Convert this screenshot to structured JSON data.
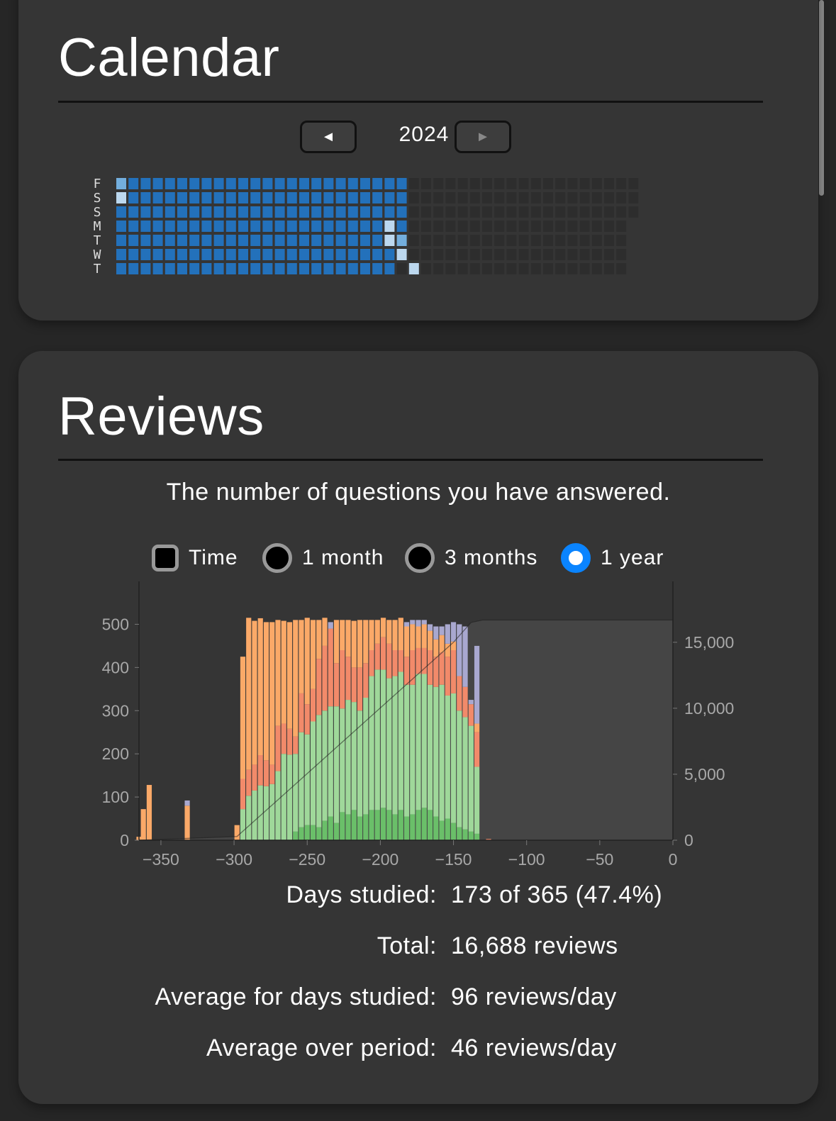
{
  "calendar": {
    "title": "Calendar",
    "year": "2024",
    "prev_label": "◄",
    "next_label": "►",
    "day_labels": [
      "F",
      "S",
      "S",
      "M",
      "T",
      "W",
      "T"
    ],
    "colors": {
      "studied": "#2371bb",
      "light": "#bcd8ef",
      "mid": "#73aedd",
      "empty": "#2d2d2d"
    }
  },
  "reviews": {
    "title": "Reviews",
    "subtitle": "The number of questions you have answered.",
    "options": [
      {
        "label": "Time",
        "type": "checkbox",
        "checked": false
      },
      {
        "label": "1 month",
        "type": "radio",
        "checked": false
      },
      {
        "label": "3 months",
        "type": "radio",
        "checked": false
      },
      {
        "label": "1 year",
        "type": "radio",
        "checked": true
      }
    ],
    "stats": [
      {
        "label": "Days studied:",
        "value": "173 of 365 (47.4%)"
      },
      {
        "label": "Total:",
        "value": "16,688 reviews"
      },
      {
        "label": "Average for days studied:",
        "value": "96 reviews/day"
      },
      {
        "label": "Average over period:",
        "value": "46 reviews/day"
      }
    ]
  },
  "chart_data": {
    "type": "bar",
    "stacked": true,
    "x_ticks": [
      -350,
      -300,
      -250,
      -200,
      -150,
      -100,
      -50,
      0
    ],
    "x_tick_labels": [
      "−350",
      "−300",
      "−250",
      "−200",
      "−150",
      "−100",
      "−50",
      "0"
    ],
    "xlim": [
      -365,
      0
    ],
    "y_ticks": [
      0,
      100,
      200,
      300,
      400,
      500
    ],
    "ylim": [
      0,
      550
    ],
    "y2_ticks": [
      0,
      5000,
      10000,
      15000
    ],
    "y2_tick_labels": [
      "0",
      "5,000",
      "10,000",
      "15,000"
    ],
    "y2lim": [
      0,
      18000
    ],
    "grid": false,
    "colors": {
      "mature": "#6abf69",
      "young": "#9fd89a",
      "relearn": "#f28a6a",
      "learn": "#fba968",
      "filtered": "#a9a8cf",
      "cumulative": "#474747"
    },
    "bars": [
      {
        "day": -365,
        "mature": 0,
        "young": 0,
        "relearn": 0,
        "learn": 8,
        "filtered": 0
      },
      {
        "day": -362,
        "mature": 0,
        "young": 0,
        "relearn": 0,
        "learn": 72,
        "filtered": 0
      },
      {
        "day": -358,
        "mature": 0,
        "young": 0,
        "relearn": 0,
        "learn": 128,
        "filtered": 0
      },
      {
        "day": -332,
        "mature": 0,
        "young": 0,
        "relearn": 0,
        "learn": 80,
        "filtered": 12
      },
      {
        "day": -298,
        "mature": 0,
        "young": 0,
        "relearn": 0,
        "learn": 35,
        "filtered": 0
      },
      {
        "day": -294,
        "mature": 0,
        "young": 72,
        "relearn": 70,
        "learn": 283,
        "filtered": 0
      },
      {
        "day": -290,
        "mature": 0,
        "young": 103,
        "relearn": 60,
        "learn": 352,
        "filtered": 0
      },
      {
        "day": -286,
        "mature": 0,
        "young": 115,
        "relearn": 60,
        "learn": 333,
        "filtered": 0
      },
      {
        "day": -282,
        "mature": 0,
        "young": 127,
        "relearn": 70,
        "learn": 317,
        "filtered": 0
      },
      {
        "day": -278,
        "mature": 0,
        "young": 125,
        "relearn": 60,
        "learn": 320,
        "filtered": 0
      },
      {
        "day": -274,
        "mature": 0,
        "young": 130,
        "relearn": 45,
        "learn": 330,
        "filtered": 0
      },
      {
        "day": -270,
        "mature": 0,
        "young": 160,
        "relearn": 105,
        "learn": 245,
        "filtered": 0
      },
      {
        "day": -266,
        "mature": 0,
        "young": 200,
        "relearn": 70,
        "learn": 238,
        "filtered": 0
      },
      {
        "day": -262,
        "mature": 0,
        "young": 198,
        "relearn": 60,
        "learn": 247,
        "filtered": 0
      },
      {
        "day": -258,
        "mature": 20,
        "young": 180,
        "relearn": 40,
        "learn": 270,
        "filtered": 0
      },
      {
        "day": -254,
        "mature": 30,
        "young": 220,
        "relearn": 90,
        "learn": 170,
        "filtered": 0
      },
      {
        "day": -250,
        "mature": 35,
        "young": 210,
        "relearn": 70,
        "learn": 200,
        "filtered": 0
      },
      {
        "day": -246,
        "mature": 35,
        "young": 240,
        "relearn": 75,
        "learn": 160,
        "filtered": 0
      },
      {
        "day": -242,
        "mature": 30,
        "young": 260,
        "relearn": 130,
        "learn": 90,
        "filtered": 0
      },
      {
        "day": -238,
        "mature": 45,
        "young": 255,
        "relearn": 150,
        "learn": 65,
        "filtered": 0
      },
      {
        "day": -234,
        "mature": 55,
        "young": 255,
        "relearn": 180,
        "learn": 0,
        "filtered": 15
      },
      {
        "day": -230,
        "mature": 40,
        "young": 270,
        "relearn": 100,
        "learn": 100,
        "filtered": 0
      },
      {
        "day": -226,
        "mature": 65,
        "young": 240,
        "relearn": 135,
        "learn": 70,
        "filtered": 0
      },
      {
        "day": -222,
        "mature": 60,
        "young": 265,
        "relearn": 100,
        "learn": 85,
        "filtered": 0
      },
      {
        "day": -218,
        "mature": 70,
        "young": 250,
        "relearn": 80,
        "learn": 108,
        "filtered": 0
      },
      {
        "day": -214,
        "mature": 55,
        "young": 245,
        "relearn": 100,
        "learn": 110,
        "filtered": 0
      },
      {
        "day": -210,
        "mature": 60,
        "young": 270,
        "relearn": 80,
        "learn": 100,
        "filtered": 0
      },
      {
        "day": -206,
        "mature": 70,
        "young": 310,
        "relearn": 60,
        "learn": 70,
        "filtered": 0
      },
      {
        "day": -202,
        "mature": 70,
        "young": 325,
        "relearn": 60,
        "learn": 55,
        "filtered": 0
      },
      {
        "day": -198,
        "mature": 75,
        "young": 320,
        "relearn": 75,
        "learn": 45,
        "filtered": 0
      },
      {
        "day": -194,
        "mature": 70,
        "young": 305,
        "relearn": 80,
        "learn": 55,
        "filtered": 0
      },
      {
        "day": -190,
        "mature": 60,
        "young": 320,
        "relearn": 60,
        "learn": 70,
        "filtered": 0
      },
      {
        "day": -186,
        "mature": 70,
        "young": 320,
        "relearn": 50,
        "learn": 75,
        "filtered": 0
      },
      {
        "day": -182,
        "mature": 55,
        "young": 305,
        "relearn": 65,
        "learn": 70,
        "filtered": 10
      },
      {
        "day": -178,
        "mature": 60,
        "young": 300,
        "relearn": 80,
        "learn": 60,
        "filtered": 10
      },
      {
        "day": -174,
        "mature": 70,
        "young": 315,
        "relearn": 60,
        "learn": 50,
        "filtered": 15
      },
      {
        "day": -170,
        "mature": 75,
        "young": 310,
        "relearn": 60,
        "learn": 55,
        "filtered": 10
      },
      {
        "day": -166,
        "mature": 70,
        "young": 290,
        "relearn": 80,
        "learn": 45,
        "filtered": 15
      },
      {
        "day": -162,
        "mature": 55,
        "young": 300,
        "relearn": 70,
        "learn": 40,
        "filtered": 30
      },
      {
        "day": -158,
        "mature": 45,
        "young": 315,
        "relearn": 75,
        "learn": 40,
        "filtered": 20
      },
      {
        "day": -154,
        "mature": 50,
        "young": 285,
        "relearn": 90,
        "learn": 30,
        "filtered": 45
      },
      {
        "day": -150,
        "mature": 40,
        "young": 300,
        "relearn": 100,
        "learn": 20,
        "filtered": 45
      },
      {
        "day": -146,
        "mature": 30,
        "young": 270,
        "relearn": 80,
        "learn": 0,
        "filtered": 120
      },
      {
        "day": -142,
        "mature": 25,
        "young": 260,
        "relearn": 70,
        "learn": 0,
        "filtered": 140
      },
      {
        "day": -138,
        "mature": 20,
        "young": 245,
        "relearn": 50,
        "learn": 0,
        "filtered": 10
      },
      {
        "day": -134,
        "mature": 15,
        "young": 155,
        "relearn": 80,
        "learn": 20,
        "filtered": 180
      },
      {
        "day": -126,
        "mature": 0,
        "young": 0,
        "relearn": 3,
        "learn": 0,
        "filtered": 0
      }
    ],
    "cumulative": [
      {
        "day": -365,
        "value": 0
      },
      {
        "day": -298,
        "value": 280
      },
      {
        "day": -150,
        "value": 15000
      },
      {
        "day": -138,
        "value": 16500
      },
      {
        "day": -130,
        "value": 16688
      },
      {
        "day": 0,
        "value": 16688
      }
    ]
  }
}
